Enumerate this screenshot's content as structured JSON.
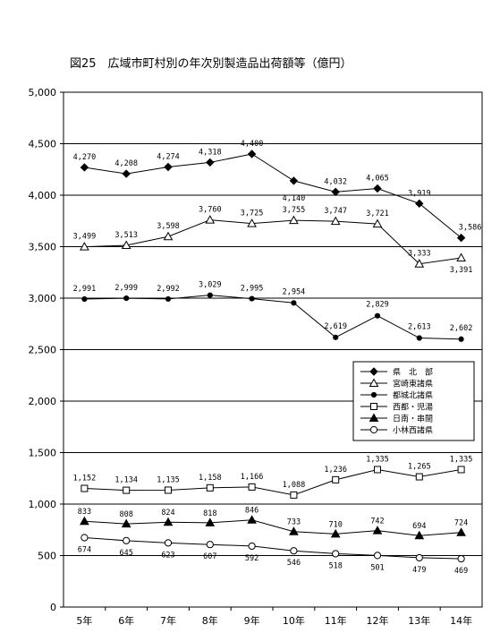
{
  "chart_data": {
    "type": "line",
    "title": "図25　広域市町村別の年次別製造品出荷額等（億円）",
    "categories": [
      "5年",
      "6年",
      "7年",
      "8年",
      "9年",
      "10年",
      "11年",
      "12年",
      "13年",
      "14年"
    ],
    "ylim": [
      0,
      5000
    ],
    "yticks": [
      0,
      500,
      1000,
      1500,
      2000,
      2500,
      3000,
      3500,
      4000,
      4500,
      5000
    ],
    "ytick_labels": [
      "0",
      "500",
      "1,000",
      "1,500",
      "2,000",
      "2,500",
      "3,000",
      "3,500",
      "4,000",
      "4,500",
      "5,000"
    ],
    "grid": true,
    "legend_position": "right-middle",
    "series": [
      {
        "name": "県　北　部",
        "marker": "diamond-filled",
        "values": [
          4270,
          4208,
          4274,
          4318,
          4400,
          4140,
          4032,
          4065,
          3919,
          3586
        ],
        "labels": [
          "4,270",
          "4,208",
          "4,274",
          "4,318",
          "4,400",
          "4,140",
          "4,032",
          "4,065",
          "3,919",
          "3,586"
        ]
      },
      {
        "name": "宮崎東諸県",
        "marker": "triangle-open",
        "values": [
          3499,
          3513,
          3598,
          3760,
          3725,
          3755,
          3747,
          3721,
          3333,
          3391
        ],
        "labels": [
          "3,499",
          "3,513",
          "3,598",
          "3,760",
          "3,725",
          "3,755",
          "3,747",
          "3,721",
          "3,333",
          "3,391"
        ]
      },
      {
        "name": "都城北諸県",
        "marker": "circle-filled",
        "values": [
          2991,
          2999,
          2992,
          3029,
          2995,
          2954,
          2619,
          2829,
          2613,
          2602
        ],
        "labels": [
          "2,991",
          "2,999",
          "2,992",
          "3,029",
          "2,995",
          "2,954",
          "2,619",
          "2,829",
          "2,613",
          "2,602"
        ]
      },
      {
        "name": "西都・児湯",
        "marker": "square-open",
        "values": [
          1152,
          1134,
          1135,
          1158,
          1166,
          1088,
          1236,
          1335,
          1265,
          1335
        ],
        "labels": [
          "1,152",
          "1,134",
          "1,135",
          "1,158",
          "1,166",
          "1,088",
          "1,236",
          "1,335",
          "1,265",
          "1,335"
        ]
      },
      {
        "name": "日南・串間",
        "marker": "triangle-filled",
        "values": [
          833,
          808,
          824,
          818,
          846,
          733,
          710,
          742,
          694,
          724
        ],
        "labels": [
          "833",
          "808",
          "824",
          "818",
          "846",
          "733",
          "710",
          "742",
          "694",
          "724"
        ]
      },
      {
        "name": "小林西諸県",
        "marker": "circle-open",
        "values": [
          674,
          645,
          623,
          607,
          592,
          546,
          518,
          501,
          479,
          469
        ],
        "labels": [
          "674",
          "645",
          "623",
          "607",
          "592",
          "546",
          "518",
          "501",
          "479",
          "469"
        ]
      }
    ]
  }
}
